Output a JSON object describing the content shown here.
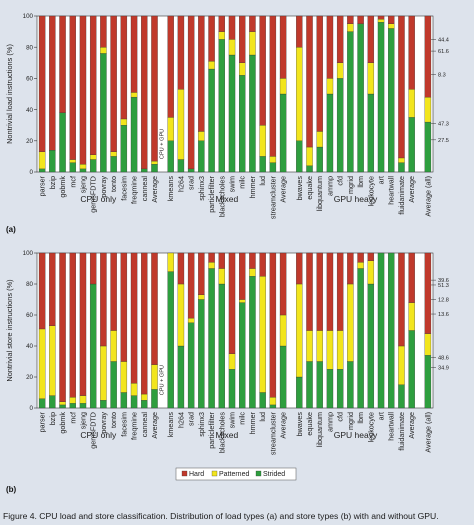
{
  "caption": "Figure 4. CPU load and store classification. Distribution of load types (a) and store types (b) with and without GPU.",
  "colors": {
    "hard": "#c0392b",
    "patterned": "#f2e51d",
    "strided": "#2e9e3e",
    "background": "#dde3ec"
  },
  "chart_data": [
    {
      "type": "bar",
      "stacked": true,
      "panel_label": "(a)",
      "ylabel": "Nontrivial load instructions (%)",
      "ylim": [
        0,
        100
      ],
      "yticks": [
        0,
        20,
        40,
        60,
        80,
        100
      ],
      "legend_labels": [
        "Hard",
        "Patterned",
        "Strided"
      ],
      "groups": [
        "CPU only",
        "Mixed",
        "GPU heavy"
      ],
      "categories": [
        "parser",
        "bzip",
        "gobmk",
        "mcf",
        "sjeng",
        "gemsFDTD",
        "povray",
        "tonto",
        "facesim",
        "freqmine",
        "canneal",
        "Average",
        "kmeans",
        "h264",
        "srad",
        "sphinx3",
        "particlefilter",
        "blackscholes",
        "swim",
        "milc",
        "hmmer",
        "lud",
        "streamcluster",
        "Average",
        "bwaves",
        "equake",
        "libquantum",
        "ammp",
        "cfd",
        "mgrid",
        "lbm",
        "leukocyte",
        "art",
        "heartwall",
        "fluidanimate",
        "Average",
        "Average (all)"
      ],
      "annotation": "CPU + GPU",
      "right_labels": [
        "44.4",
        "61.6",
        "8.3",
        "47.3",
        "27.5"
      ],
      "series": [
        {
          "name": "Strided",
          "values": [
            2,
            14,
            38,
            6,
            2,
            8,
            76,
            10,
            30,
            48,
            2,
            5,
            20,
            8,
            2,
            20,
            66,
            85,
            75,
            62,
            75,
            10,
            6,
            50,
            20,
            4,
            16,
            50,
            60,
            90,
            95,
            50,
            96,
            92,
            6,
            35,
            32
          ]
        },
        {
          "name": "Patterned",
          "values": [
            11,
            0,
            0,
            2,
            3,
            3,
            4,
            3,
            4,
            3,
            0,
            2,
            15,
            45,
            0,
            6,
            5,
            5,
            10,
            8,
            15,
            20,
            4,
            10,
            60,
            12,
            10,
            10,
            10,
            5,
            0,
            20,
            2,
            3,
            3,
            18,
            16
          ]
        },
        {
          "name": "Hard",
          "values": [
            87,
            86,
            62,
            92,
            95,
            89,
            20,
            87,
            66,
            49,
            98,
            93,
            65,
            47,
            98,
            74,
            29,
            10,
            15,
            30,
            10,
            70,
            90,
            40,
            20,
            84,
            74,
            40,
            30,
            5,
            5,
            30,
            2,
            5,
            91,
            47,
            52
          ]
        }
      ]
    },
    {
      "type": "bar",
      "stacked": true,
      "panel_label": "(b)",
      "ylabel": "Nontrivial store instructions (%)",
      "ylim": [
        0,
        100
      ],
      "yticks": [
        0,
        20,
        40,
        60,
        80,
        100
      ],
      "legend_labels": [
        "Hard",
        "Patterned",
        "Strided"
      ],
      "groups": [
        "CPU only",
        "Mixed",
        "GPU heavy"
      ],
      "categories": [
        "parser",
        "bzip",
        "gobmk",
        "mcf",
        "sjeng",
        "gemsFDTD",
        "povray",
        "tonto",
        "facesim",
        "freqmine",
        "canneal",
        "Average",
        "kmeans",
        "h264",
        "srad",
        "sphinx3",
        "particlefilter",
        "blackscholes",
        "swim",
        "milc",
        "hmmer",
        "lud",
        "streamcluster",
        "Average",
        "bwaves",
        "equake",
        "libquantum",
        "ammp",
        "cfd",
        "mgrid",
        "lbm",
        "leukocyte",
        "art",
        "heartwall",
        "fluidanimate",
        "Average",
        "Average (all)"
      ],
      "annotation": "CPU + GPU",
      "right_labels": [
        "39.6",
        "51.3",
        "12.8",
        "13.6",
        "48.6",
        "34.9"
      ],
      "series": [
        {
          "name": "Strided",
          "values": [
            6,
            8,
            2,
            3,
            3,
            80,
            5,
            30,
            10,
            8,
            5,
            12,
            88,
            40,
            55,
            70,
            90,
            80,
            25,
            68,
            85,
            10,
            2,
            40,
            20,
            30,
            30,
            25,
            25,
            30,
            90,
            80,
            100,
            100,
            15,
            50,
            34
          ]
        },
        {
          "name": "Patterned",
          "values": [
            45,
            45,
            2,
            4,
            5,
            0,
            35,
            20,
            20,
            8,
            4,
            16,
            12,
            40,
            3,
            3,
            4,
            10,
            10,
            2,
            5,
            75,
            5,
            20,
            60,
            20,
            20,
            25,
            25,
            50,
            4,
            15,
            0,
            0,
            25,
            18,
            14
          ]
        },
        {
          "name": "Hard",
          "values": [
            49,
            47,
            96,
            93,
            92,
            20,
            60,
            50,
            70,
            84,
            91,
            72,
            0,
            20,
            42,
            27,
            6,
            10,
            65,
            30,
            10,
            15,
            93,
            40,
            20,
            50,
            50,
            50,
            50,
            20,
            6,
            5,
            0,
            0,
            60,
            32,
            52
          ]
        }
      ]
    }
  ]
}
